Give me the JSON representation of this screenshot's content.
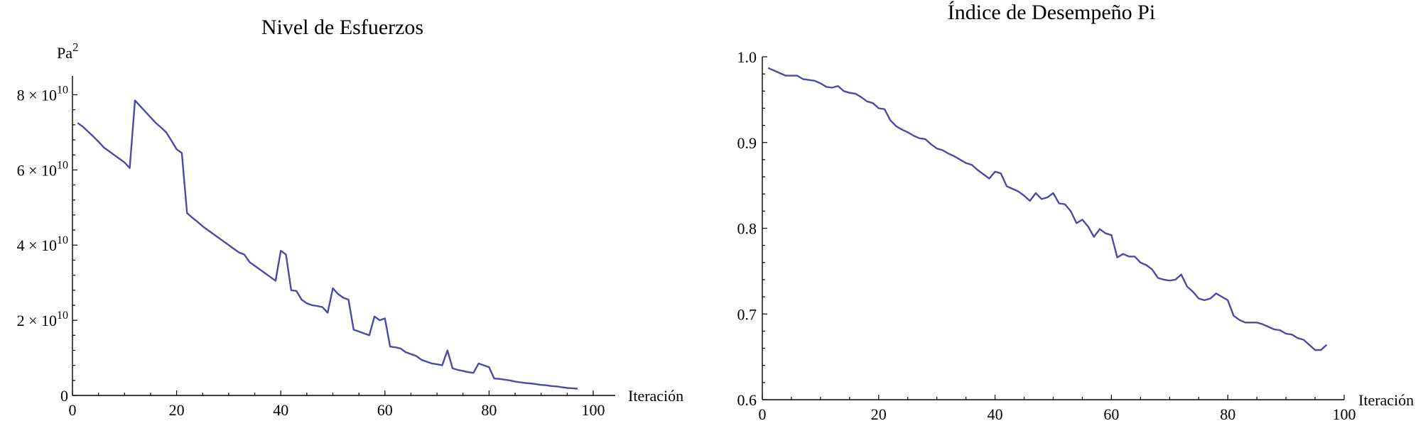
{
  "chart_data": [
    {
      "type": "line",
      "title": "Nivel de Esfuerzos",
      "xlabel": "Iteración",
      "ylabel": "Pa",
      "ylabel_sup": "2",
      "xlim": [
        0,
        100
      ],
      "ylim": [
        0,
        85000000000
      ],
      "grid": false,
      "x_ticks": [
        "0",
        "20",
        "40",
        "60",
        "80",
        "100"
      ],
      "y_ticks": [
        {
          "label": "0"
        },
        {
          "mant": "2",
          "times": "×",
          "base": "10",
          "exp": "10"
        },
        {
          "mant": "4",
          "times": "×",
          "base": "10",
          "exp": "10"
        },
        {
          "mant": "6",
          "times": "×",
          "base": "10",
          "exp": "10"
        },
        {
          "mant": "8",
          "times": "×",
          "base": "10",
          "exp": "10"
        }
      ],
      "color": "#4b4ba6",
      "series": [
        {
          "x": [
            1,
            2,
            3,
            4,
            5,
            6,
            7,
            8,
            9,
            10,
            11,
            12,
            13,
            14,
            15,
            16,
            17,
            18,
            19,
            20,
            21,
            22,
            23,
            24,
            25,
            26,
            27,
            28,
            29,
            30,
            31,
            32,
            33,
            34,
            35,
            36,
            37,
            38,
            39,
            40,
            41,
            42,
            43,
            44,
            45,
            46,
            47,
            48,
            49,
            50,
            51,
            52,
            53,
            54,
            55,
            56,
            57,
            58,
            59,
            60,
            61,
            62,
            63,
            64,
            65,
            66,
            67,
            68,
            69,
            70,
            71,
            72,
            73,
            74,
            75,
            76,
            77,
            78,
            79,
            80,
            81,
            82,
            83,
            84,
            85,
            86,
            87,
            88,
            89,
            90,
            91,
            92,
            93,
            94,
            95,
            96,
            97
          ],
          "values": [
            72500000000,
            71500000000,
            70200000000,
            68900000000,
            67500000000,
            66000000000,
            65000000000,
            64000000000,
            63000000000,
            62000000000,
            60500000000,
            78500000000,
            77000000000,
            75500000000,
            74000000000,
            72500000000,
            71300000000,
            70000000000,
            67800000000,
            65500000000,
            64500000000,
            48500000000,
            47300000000,
            46200000000,
            45000000000,
            44000000000,
            43000000000,
            42000000000,
            41000000000,
            40000000000,
            39000000000,
            38000000000,
            37500000000,
            35500000000,
            34500000000,
            33500000000,
            32500000000,
            31500000000,
            30500000000,
            38500000000,
            37500000000,
            28000000000,
            27800000000,
            25500000000,
            24500000000,
            24000000000,
            23800000000,
            23500000000,
            22000000000,
            28500000000,
            27000000000,
            26000000000,
            25500000000,
            17500000000,
            17000000000,
            16500000000,
            16000000000,
            21000000000,
            20000000000,
            20500000000,
            13000000000,
            12800000000,
            12500000000,
            11500000000,
            11000000000,
            10500000000,
            9500000000,
            9000000000,
            8500000000,
            8300000000,
            8000000000,
            12000000000,
            7200000000,
            6800000000,
            6500000000,
            6200000000,
            6000000000,
            8500000000,
            8000000000,
            7500000000,
            4500000000,
            4400000000,
            4200000000,
            4000000000,
            3700000000,
            3500000000,
            3300000000,
            3200000000,
            3000000000,
            2800000000,
            2700000000,
            2500000000,
            2400000000,
            2200000000,
            2000000000,
            1900000000,
            1800000000
          ]
        }
      ]
    },
    {
      "type": "line",
      "title": "Índice de Desempeño Pi",
      "xlabel": "Iteración",
      "ylabel": "",
      "xlim": [
        0,
        100
      ],
      "ylim": [
        0.6,
        1.0
      ],
      "grid": false,
      "x_ticks": [
        "0",
        "20",
        "40",
        "60",
        "80",
        "100"
      ],
      "y_ticks": [
        {
          "label": "0.6"
        },
        {
          "label": "0.7"
        },
        {
          "label": "0.8"
        },
        {
          "label": "0.9"
        },
        {
          "label": "1.0"
        }
      ],
      "color": "#4b4ba6",
      "series": [
        {
          "x": [
            1,
            2,
            3,
            4,
            5,
            6,
            7,
            8,
            9,
            10,
            11,
            12,
            13,
            14,
            15,
            16,
            17,
            18,
            19,
            20,
            21,
            22,
            23,
            24,
            25,
            26,
            27,
            28,
            29,
            30,
            31,
            32,
            33,
            34,
            35,
            36,
            37,
            38,
            39,
            40,
            41,
            42,
            43,
            44,
            45,
            46,
            47,
            48,
            49,
            50,
            51,
            52,
            53,
            54,
            55,
            56,
            57,
            58,
            59,
            60,
            61,
            62,
            63,
            64,
            65,
            66,
            67,
            68,
            69,
            70,
            71,
            72,
            73,
            74,
            75,
            76,
            77,
            78,
            79,
            80,
            81,
            82,
            83,
            84,
            85,
            86,
            87,
            88,
            89,
            90,
            91,
            92,
            93,
            94,
            95,
            96,
            97
          ],
          "values": [
            0.987,
            0.984,
            0.981,
            0.978,
            0.978,
            0.978,
            0.974,
            0.973,
            0.972,
            0.969,
            0.965,
            0.964,
            0.966,
            0.96,
            0.958,
            0.957,
            0.953,
            0.948,
            0.946,
            0.94,
            0.939,
            0.926,
            0.919,
            0.915,
            0.912,
            0.908,
            0.905,
            0.904,
            0.898,
            0.893,
            0.891,
            0.887,
            0.884,
            0.88,
            0.876,
            0.874,
            0.868,
            0.863,
            0.858,
            0.866,
            0.864,
            0.849,
            0.846,
            0.843,
            0.838,
            0.832,
            0.841,
            0.834,
            0.836,
            0.841,
            0.829,
            0.828,
            0.82,
            0.806,
            0.81,
            0.802,
            0.79,
            0.799,
            0.794,
            0.792,
            0.766,
            0.77,
            0.767,
            0.767,
            0.76,
            0.757,
            0.752,
            0.742,
            0.74,
            0.739,
            0.74,
            0.746,
            0.732,
            0.726,
            0.718,
            0.716,
            0.718,
            0.724,
            0.72,
            0.716,
            0.698,
            0.693,
            0.69,
            0.69,
            0.69,
            0.688,
            0.685,
            0.682,
            0.681,
            0.677,
            0.676,
            0.672,
            0.67,
            0.664,
            0.658,
            0.658,
            0.664
          ]
        }
      ]
    }
  ]
}
